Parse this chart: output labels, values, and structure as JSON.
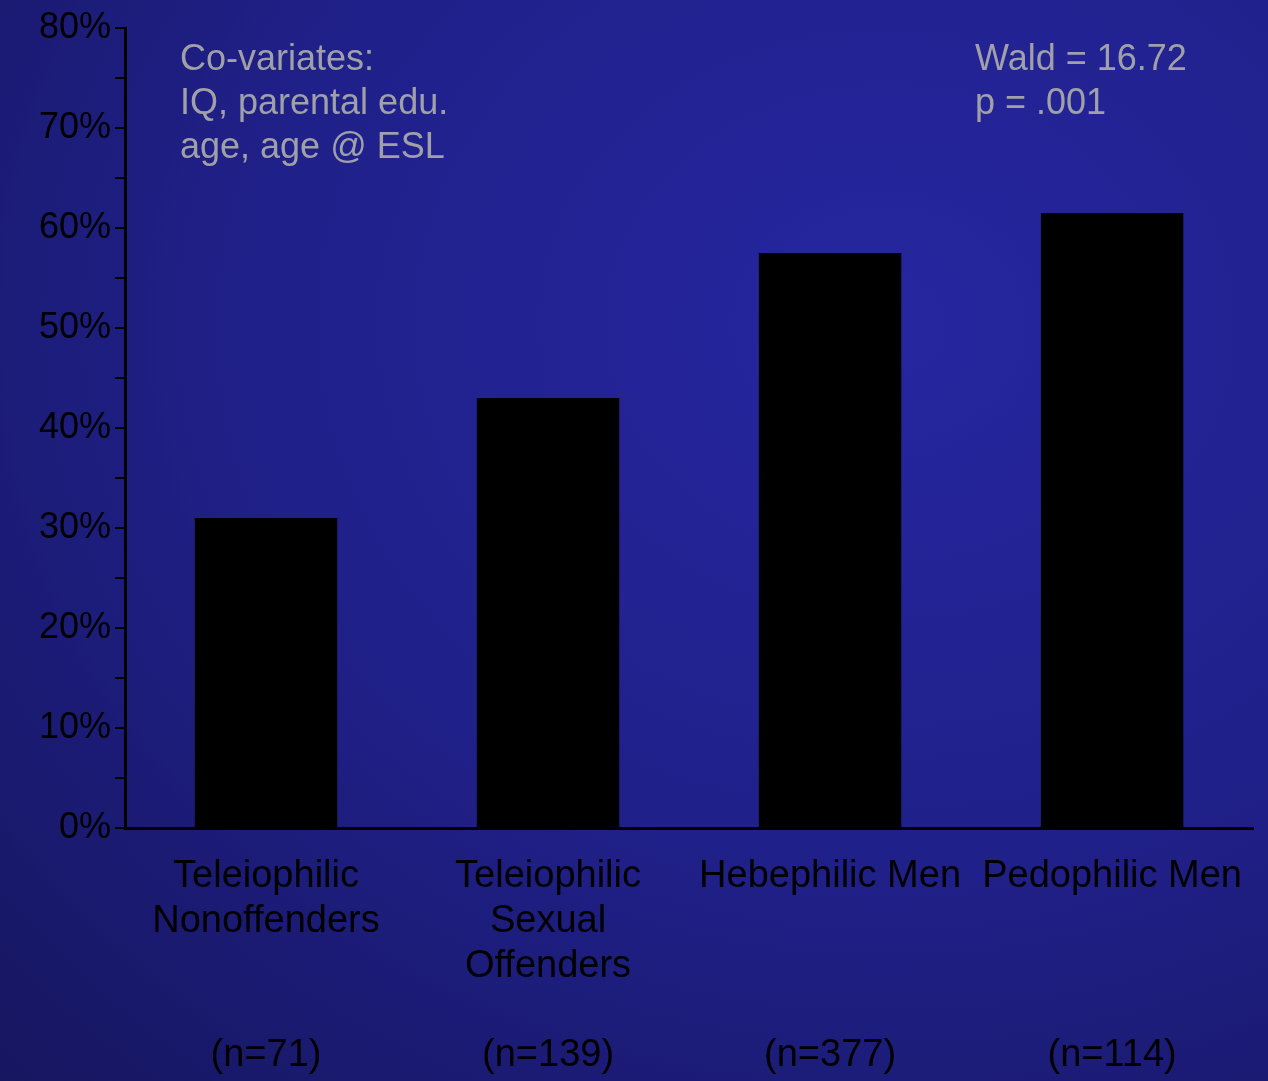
{
  "chart_data": {
    "type": "bar",
    "categories": [
      "Teleiophilic Nonoffenders (n=71)",
      "Teleiophilic Sexual Offenders (n=139)",
      "Hebephilic Men (n=377)",
      "Pedophilic Men (n=114)"
    ],
    "values": [
      31,
      43,
      57.5,
      61.5
    ],
    "color": "#000000",
    "ylim": [
      0,
      80
    ],
    "yticks": [
      {
        "value": 0,
        "label": "0%"
      },
      {
        "value": 5,
        "label": null
      },
      {
        "value": 10,
        "label": "10%"
      },
      {
        "value": 15,
        "label": null
      },
      {
        "value": 20,
        "label": "20%"
      },
      {
        "value": 25,
        "label": null
      },
      {
        "value": 30,
        "label": "30%"
      },
      {
        "value": 35,
        "label": null
      },
      {
        "value": 40,
        "label": "40%"
      },
      {
        "value": 45,
        "label": null
      },
      {
        "value": 50,
        "label": "50%"
      },
      {
        "value": 55,
        "label": null
      },
      {
        "value": 60,
        "label": "60%"
      },
      {
        "value": 65,
        "label": null
      },
      {
        "value": 70,
        "label": "70%"
      },
      {
        "value": 75,
        "label": null
      },
      {
        "value": 80,
        "label": "80%"
      }
    ],
    "annotations": [
      "Co-variates:\nIQ, parental edu.\nage, age @ ESL",
      "Wald = 16.72\np = .001"
    ],
    "grid": false,
    "legend": false
  }
}
